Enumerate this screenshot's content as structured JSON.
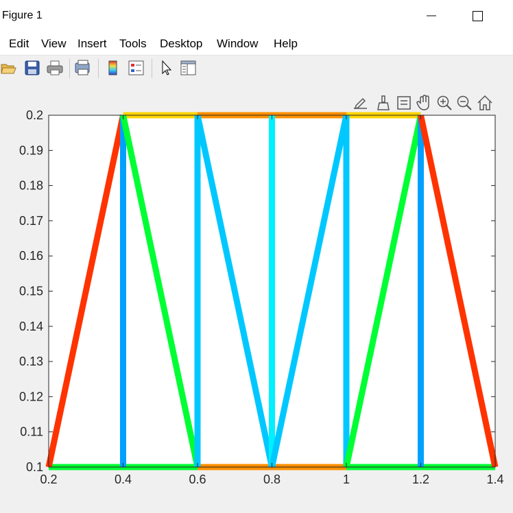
{
  "window": {
    "title": "Figure 1",
    "minimize_icon": "minimize-icon",
    "maximize_icon": "maximize-icon"
  },
  "menu": {
    "items": [
      "Edit",
      "View",
      "Insert",
      "Tools",
      "Desktop",
      "Window",
      "Help"
    ]
  },
  "toolbar": {
    "icons": [
      "open-file-icon",
      "save-icon",
      "print-icon",
      "print-preview-icon",
      "colorbar-icon",
      "legend-icon",
      "pointer-icon",
      "property-inspector-icon"
    ]
  },
  "axes_toolbar": {
    "icons": [
      "edit-plot-icon",
      "brush-icon",
      "data-tips-icon",
      "pan-icon",
      "zoom-in-icon",
      "zoom-out-icon",
      "home-icon"
    ]
  },
  "chart_data": {
    "type": "line",
    "title": "",
    "xlabel": "",
    "ylabel": "",
    "xlim": [
      0.2,
      1.4
    ],
    "ylim": [
      0.1,
      0.2
    ],
    "xticks": [
      0.2,
      0.4,
      0.6,
      0.8,
      1.0,
      1.2,
      1.4
    ],
    "xtick_labels": [
      "0.2",
      "0.4",
      "0.6",
      "0.8",
      "1",
      "1.2",
      "1.4"
    ],
    "yticks": [
      0.1,
      0.11,
      0.12,
      0.13,
      0.14,
      0.15,
      0.16,
      0.17,
      0.18,
      0.19,
      0.2
    ],
    "ytick_labels": [
      "0.1",
      "0.11",
      "0.12",
      "0.13",
      "0.14",
      "0.15",
      "0.16",
      "0.17",
      "0.18",
      "0.19",
      "0.2"
    ],
    "grid": false,
    "segments": [
      {
        "x": [
          0.2,
          0.4
        ],
        "y": [
          0.1,
          0.1
        ],
        "color": "#00ff33"
      },
      {
        "x": [
          0.4,
          0.6
        ],
        "y": [
          0.1,
          0.1
        ],
        "color": "#00ff33"
      },
      {
        "x": [
          0.6,
          0.8
        ],
        "y": [
          0.1,
          0.1
        ],
        "color": "#ff9000"
      },
      {
        "x": [
          0.8,
          1.0
        ],
        "y": [
          0.1,
          0.1
        ],
        "color": "#ff9000"
      },
      {
        "x": [
          1.0,
          1.2
        ],
        "y": [
          0.1,
          0.1
        ],
        "color": "#00ff33"
      },
      {
        "x": [
          1.2,
          1.4
        ],
        "y": [
          0.1,
          0.1
        ],
        "color": "#00ff33"
      },
      {
        "x": [
          0.4,
          0.6
        ],
        "y": [
          0.2,
          0.2
        ],
        "color": "#ffd500"
      },
      {
        "x": [
          0.6,
          0.8
        ],
        "y": [
          0.2,
          0.2
        ],
        "color": "#ff9000"
      },
      {
        "x": [
          0.8,
          1.0
        ],
        "y": [
          0.2,
          0.2
        ],
        "color": "#ff9000"
      },
      {
        "x": [
          1.0,
          1.2
        ],
        "y": [
          0.2,
          0.2
        ],
        "color": "#ffd500"
      },
      {
        "x": [
          0.2,
          0.4
        ],
        "y": [
          0.1,
          0.2
        ],
        "color": "#ff3300"
      },
      {
        "x": [
          0.4,
          0.4
        ],
        "y": [
          0.1,
          0.2
        ],
        "color": "#00a0ff"
      },
      {
        "x": [
          0.4,
          0.6
        ],
        "y": [
          0.2,
          0.1
        ],
        "color": "#00ff33"
      },
      {
        "x": [
          0.6,
          0.6
        ],
        "y": [
          0.1,
          0.2
        ],
        "color": "#00c8ff"
      },
      {
        "x": [
          0.6,
          0.8
        ],
        "y": [
          0.2,
          0.1
        ],
        "color": "#00c8ff"
      },
      {
        "x": [
          0.8,
          0.8
        ],
        "y": [
          0.1,
          0.2
        ],
        "color": "#00f0ff"
      },
      {
        "x": [
          0.8,
          1.0
        ],
        "y": [
          0.1,
          0.2
        ],
        "color": "#00c8ff"
      },
      {
        "x": [
          1.0,
          1.0
        ],
        "y": [
          0.1,
          0.2
        ],
        "color": "#00c8ff"
      },
      {
        "x": [
          1.0,
          1.2
        ],
        "y": [
          0.1,
          0.2
        ],
        "color": "#00ff33"
      },
      {
        "x": [
          1.2,
          1.2
        ],
        "y": [
          0.1,
          0.2
        ],
        "color": "#00a0ff"
      },
      {
        "x": [
          1.2,
          1.4
        ],
        "y": [
          0.2,
          0.1
        ],
        "color": "#ff3300"
      }
    ]
  }
}
